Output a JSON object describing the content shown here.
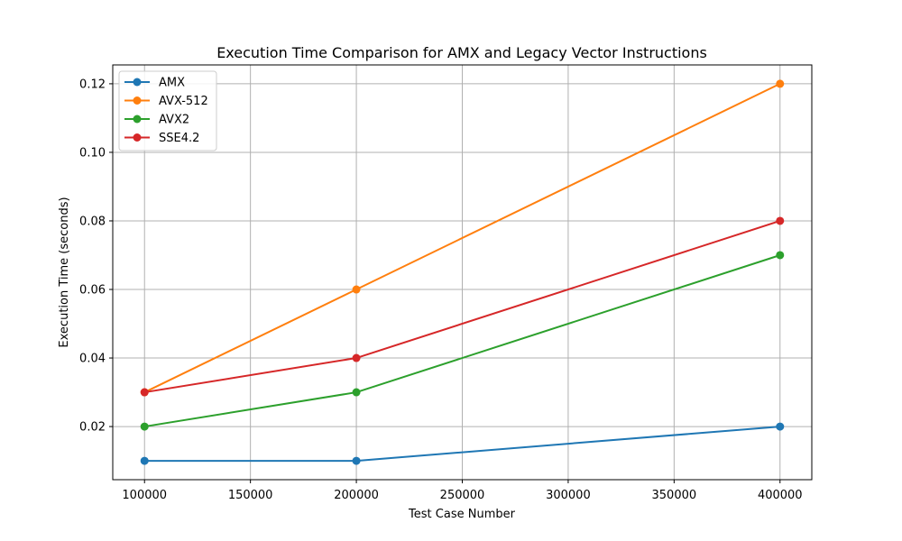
{
  "chart_data": {
    "type": "line",
    "title": "Execution Time Comparison for AMX and Legacy Vector Instructions",
    "xlabel": "Test Case Number",
    "ylabel": "Execution Time (seconds)",
    "x": [
      100000,
      200000,
      400000
    ],
    "xlim": [
      85000,
      415000
    ],
    "ylim": [
      0.0045,
      0.1255
    ],
    "xticks": [
      100000,
      150000,
      200000,
      250000,
      300000,
      350000,
      400000
    ],
    "yticks": [
      0.02,
      0.04,
      0.06,
      0.08,
      0.1,
      0.12
    ],
    "xtick_labels": [
      "100000",
      "150000",
      "200000",
      "250000",
      "300000",
      "350000",
      "400000"
    ],
    "ytick_labels": [
      "0.02",
      "0.04",
      "0.06",
      "0.08",
      "0.10",
      "0.12"
    ],
    "grid": true,
    "legend_position": "upper-left",
    "series": [
      {
        "name": "AMX",
        "values": [
          0.01,
          0.01,
          0.02
        ],
        "color": "#1f77b4",
        "marker": "circle"
      },
      {
        "name": "AVX-512",
        "values": [
          0.03,
          0.06,
          0.12
        ],
        "color": "#ff7f0e",
        "marker": "circle"
      },
      {
        "name": "AVX2",
        "values": [
          0.02,
          0.03,
          0.07
        ],
        "color": "#2ca02c",
        "marker": "circle"
      },
      {
        "name": "SSE4.2",
        "values": [
          0.03,
          0.04,
          0.08
        ],
        "color": "#d62728",
        "marker": "circle"
      }
    ]
  }
}
